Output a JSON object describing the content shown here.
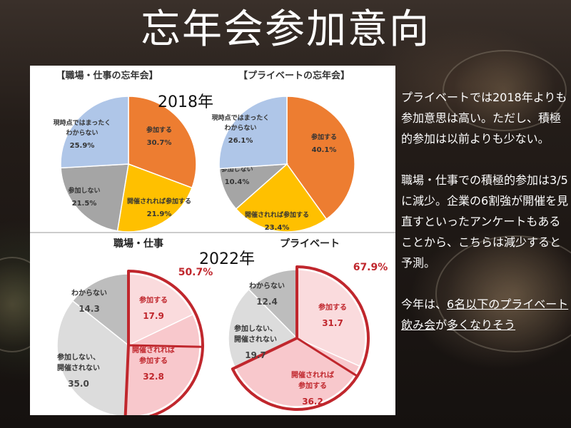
{
  "title": "忘年会参加意向",
  "colors": {
    "orange": "#ED7D31",
    "yellow": "#FFC000",
    "gray": "#A5A5A5",
    "blue": "#AFC6E8",
    "pink_light": "#FADBDD",
    "pink_mid": "#F8C8CC",
    "gray_light": "#DCDCDC",
    "gray_mid": "#BDBDBD",
    "red": "#C0272D"
  },
  "year_labels": {
    "y2018": "2018年",
    "y2022": "2022年"
  },
  "chart_data": [
    {
      "type": "pie",
      "title": "【職場・仕事の忘年会】",
      "year": "2018年",
      "slices": [
        {
          "label": "参加する",
          "value": 30.7,
          "value_text": "30.7%",
          "color": "#ED7D31"
        },
        {
          "label": "開催されれば参加する",
          "value": 21.9,
          "value_text": "21.9%",
          "color": "#FFC000"
        },
        {
          "label": "参加しない",
          "value": 21.5,
          "value_text": "21.5%",
          "color": "#A5A5A5"
        },
        {
          "label": "現時点ではまったくわからない",
          "value": 25.9,
          "value_text": "25.9%",
          "color": "#AFC6E8"
        }
      ]
    },
    {
      "type": "pie",
      "title": "【プライベートの忘年会】",
      "year": "2018年",
      "slices": [
        {
          "label": "参加する",
          "value": 40.1,
          "value_text": "40.1%",
          "color": "#ED7D31"
        },
        {
          "label": "開催されれば参加する",
          "value": 23.4,
          "value_text": "23.4%",
          "color": "#FFC000"
        },
        {
          "label": "参加しない",
          "value": 10.4,
          "value_text": "10.4%",
          "color": "#A5A5A5"
        },
        {
          "label": "現時点ではまったくわからない",
          "value": 26.1,
          "value_text": "26.1%",
          "color": "#AFC6E8"
        }
      ]
    },
    {
      "type": "pie",
      "title": "職場・仕事",
      "year": "2022年",
      "total_text": "50.7%",
      "slices": [
        {
          "label": "参加する",
          "value": 17.9,
          "value_text": "17.9",
          "color": "#FADBDD"
        },
        {
          "label": "開催されれば参加する",
          "value": 32.8,
          "value_text": "32.8",
          "color": "#F8C8CC"
        },
        {
          "label": "参加しない、開催されない",
          "value": 35.0,
          "value_text": "35.0",
          "color": "#DCDCDC"
        },
        {
          "label": "わからない",
          "value": 14.3,
          "value_text": "14.3",
          "color": "#BDBDBD"
        }
      ]
    },
    {
      "type": "pie",
      "title": "プライベート",
      "year": "2022年",
      "total_text": "67.9%",
      "slices": [
        {
          "label": "参加する",
          "value": 31.7,
          "value_text": "31.7",
          "color": "#FADBDD"
        },
        {
          "label": "開催されれば参加する",
          "value": 36.2,
          "value_text": "36.2",
          "color": "#F8C8CC"
        },
        {
          "label": "参加しない、開催されない",
          "value": 19.7,
          "value_text": "19.7",
          "color": "#DCDCDC"
        },
        {
          "label": "わからない",
          "value": 12.4,
          "value_text": "12.4",
          "color": "#BDBDBD"
        }
      ]
    }
  ],
  "commentary": {
    "p1": "プライベートでは2018年よりも参加意思は高い。ただし、積極的参加は以前よりも少ない。",
    "p2": "職場・仕事での積極的参加は3/5に減少。企業の6割強が開催を見直すといったアンケートもあることから、こちらは減少すると予測。",
    "p3_prefix": "今年は、",
    "p3_underlined_1": "6名以下のプライベート飲み会",
    "p3_mid": "が",
    "p3_underlined_2": "多くなりそう"
  }
}
